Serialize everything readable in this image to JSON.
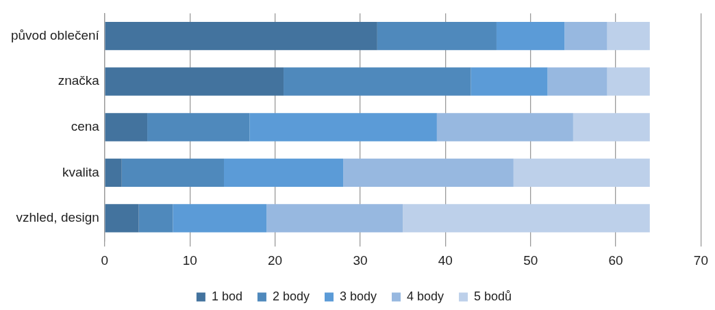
{
  "chart_data": {
    "type": "bar",
    "orientation": "horizontal",
    "stacked": true,
    "categories": [
      "původ oblečení",
      "značka",
      "cena",
      "kvalita",
      "vzhled, design"
    ],
    "series": [
      {
        "name": "1 bod",
        "color": "#43739e",
        "values": [
          32,
          21,
          5,
          2,
          4
        ]
      },
      {
        "name": "2 body",
        "color": "#4f89bc",
        "values": [
          14,
          22,
          12,
          12,
          4
        ]
      },
      {
        "name": "3 body",
        "color": "#5b9bd7",
        "values": [
          8,
          9,
          22,
          14,
          11
        ]
      },
      {
        "name": "4 body",
        "color": "#97b8e0",
        "values": [
          5,
          7,
          16,
          20,
          16
        ]
      },
      {
        "name": "5 bodů",
        "color": "#bdd0ea",
        "values": [
          5,
          5,
          9,
          16,
          29
        ]
      }
    ],
    "xlim": [
      0,
      70
    ],
    "xticks": [
      0,
      10,
      20,
      30,
      40,
      50,
      60,
      70
    ],
    "grid": "x",
    "legend": "bottom"
  }
}
